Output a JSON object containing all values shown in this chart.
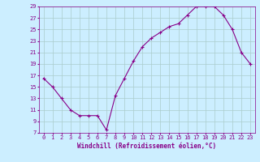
{
  "xlabel": "Windchill (Refroidissement éolien,°C)",
  "x": [
    0,
    1,
    2,
    3,
    4,
    5,
    6,
    7,
    8,
    9,
    10,
    11,
    12,
    13,
    14,
    15,
    16,
    17,
    18,
    19,
    20,
    21,
    22,
    23
  ],
  "y": [
    16.5,
    15.0,
    13.0,
    11.0,
    10.0,
    10.0,
    10.0,
    7.5,
    13.5,
    16.5,
    19.5,
    22.0,
    23.5,
    24.5,
    25.5,
    26.0,
    27.5,
    29.0,
    29.0,
    29.0,
    27.5,
    25.0,
    21.0,
    19.0
  ],
  "line_color": "#880088",
  "marker": "+",
  "bg_color": "#cceeff",
  "grid_color": "#aacccc",
  "ylim": [
    7,
    29
  ],
  "yticks": [
    7,
    9,
    11,
    13,
    15,
    17,
    19,
    21,
    23,
    25,
    27,
    29
  ],
  "xticks": [
    0,
    1,
    2,
    3,
    4,
    5,
    6,
    7,
    8,
    9,
    10,
    11,
    12,
    13,
    14,
    15,
    16,
    17,
    18,
    19,
    20,
    21,
    22,
    23
  ],
  "tick_color": "#880088",
  "label_color": "#880088",
  "tick_fontsize": 5,
  "xlabel_fontsize": 5.5,
  "marker_size": 3,
  "linewidth": 0.8
}
